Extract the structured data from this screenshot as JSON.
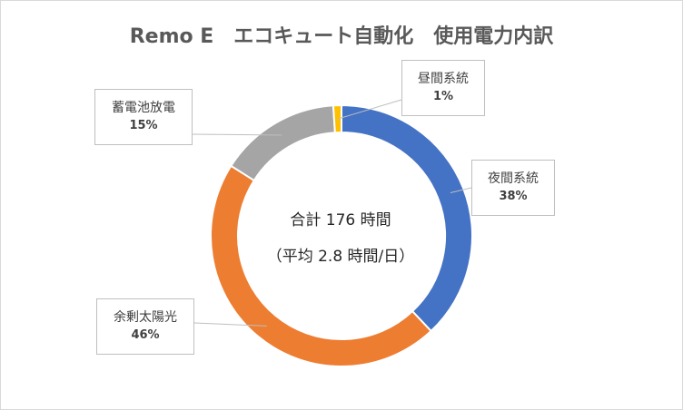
{
  "title": "Remo E　エコキュート自動化　使用電力内訳",
  "center": {
    "line1": "合計 176 時間",
    "line2": "（平均 2.8 時間/日）"
  },
  "chart_data": {
    "type": "pie",
    "variant": "doughnut",
    "title": "Remo E　エコキュート自動化　使用電力内訳",
    "categories": [
      "夜間系統",
      "余剰太陽光",
      "蓄電池放電",
      "昼間系統"
    ],
    "values": [
      38,
      46,
      15,
      1
    ],
    "data_labels": [
      "38%",
      "46%",
      "15%",
      "1%"
    ],
    "colors": [
      "#4472c4",
      "#ed7d31",
      "#a5a5a5",
      "#ffc000"
    ],
    "legend": "none"
  }
}
